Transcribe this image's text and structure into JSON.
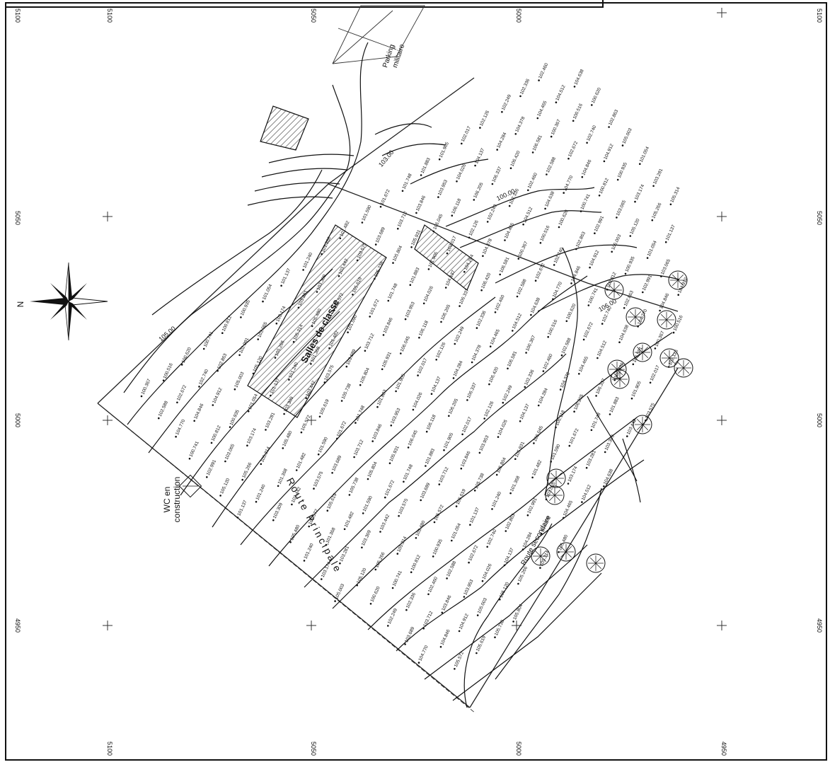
{
  "grid": {
    "x_labels": [
      "5100",
      "5050",
      "5000",
      "4950"
    ],
    "y_labels": [
      "5100",
      "5050",
      "5000",
      "4950"
    ]
  },
  "compass": {
    "north_label": "N"
  },
  "labels": {
    "salle_de_classe": "Salles de classe",
    "wc": "WC en",
    "wc_line2": "construction",
    "route": "Route Principale",
    "parking_line1": "Parking",
    "parking_line2": "militaire",
    "route_east": "Route secondaire",
    "contour_main": "100.00",
    "contour_top": "103.00",
    "contour_left": "105.00",
    "contour_right": "106.00"
  },
  "elevations": [
    "100.367",
    "100.516",
    "100.620",
    "100.741",
    "100.812",
    "100.935",
    "101.054",
    "101.137",
    "101.240",
    "101.368",
    "101.482",
    "101.590",
    "101.672",
    "101.748",
    "101.883",
    "101.905",
    "102.017",
    "102.126",
    "102.249",
    "102.336",
    "102.460",
    "102.588",
    "102.672",
    "102.740",
    "102.863",
    "102.991",
    "103.065",
    "103.174",
    "103.281",
    "103.309",
    "103.442",
    "103.575",
    "103.689",
    "103.712",
    "103.846",
    "103.953",
    "104.026",
    "104.137",
    "104.284",
    "104.378",
    "104.465",
    "104.512",
    "104.638",
    "104.770",
    "104.846",
    "104.912",
    "105.003",
    "105.120",
    "105.266",
    "105.314",
    "105.480",
    "105.572",
    "105.619",
    "105.738",
    "105.804",
    "105.931",
    "106.045",
    "106.118",
    "106.205",
    "106.337",
    "106.420",
    "106.581"
  ],
  "colors": {
    "ink": "#111111",
    "hatch": "#333333",
    "paper": "#ffffff"
  }
}
